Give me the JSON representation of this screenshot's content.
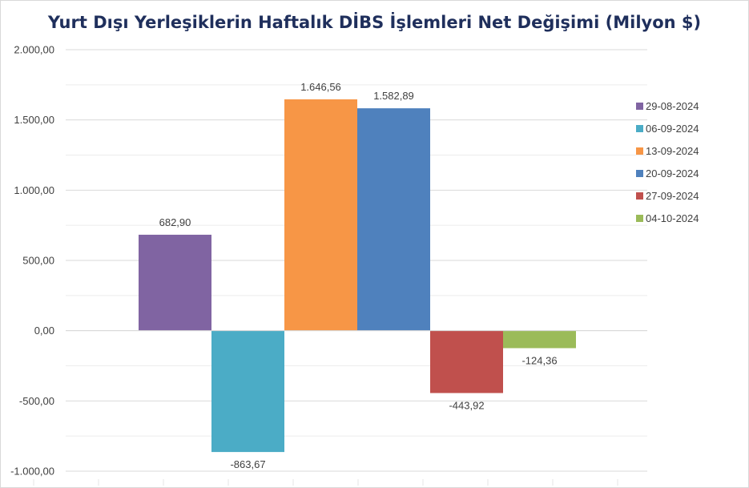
{
  "chart_data": {
    "type": "bar",
    "title": "Yurt Dışı Yerleşiklerin Haftalık DİBS İşlemleri Net Değişimi (Milyon $)",
    "xlabel": "",
    "ylabel": "",
    "ylim": [
      -1000,
      2000
    ],
    "yticks": [
      2000,
      1500,
      1000,
      500,
      0,
      -500,
      -1000
    ],
    "ytick_labels": [
      "2.000,00",
      "1.500,00",
      "1.000,00",
      "500,00",
      "0,00",
      "-500,00",
      "-1.000,00"
    ],
    "grid": true,
    "legend_position": "right",
    "series": [
      {
        "name": "29-08-2024",
        "value": 682.9,
        "label": "682,90",
        "color": "#8064a2"
      },
      {
        "name": "06-09-2024",
        "value": -863.67,
        "label": "-863,67",
        "color": "#4bacc6"
      },
      {
        "name": "13-09-2024",
        "value": 1646.56,
        "label": "1.646,56",
        "color": "#f79646"
      },
      {
        "name": "20-09-2024",
        "value": 1582.89,
        "label": "1.582,89",
        "color": "#4f81bd"
      },
      {
        "name": "27-09-2024",
        "value": -443.92,
        "label": "-443,92",
        "color": "#c0504d"
      },
      {
        "name": "04-10-2024",
        "value": -124.36,
        "label": "-124,36",
        "color": "#9bbb59"
      }
    ]
  }
}
